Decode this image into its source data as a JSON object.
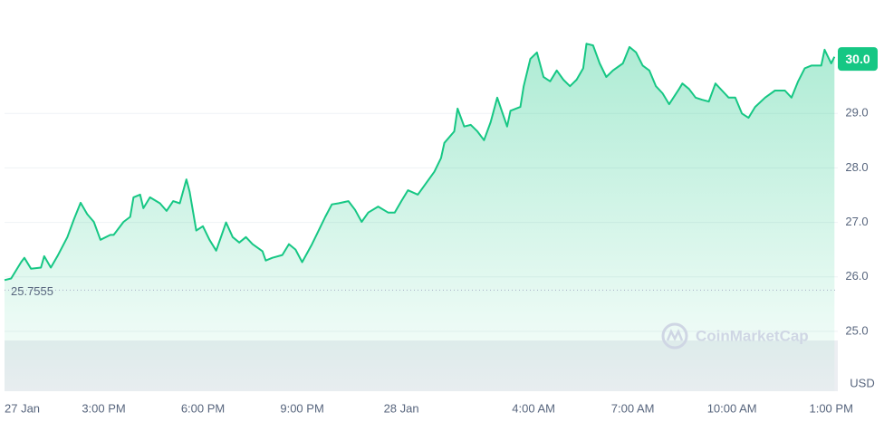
{
  "chart_data": {
    "type": "area",
    "x": [
      12.0,
      12.2,
      12.5,
      12.6,
      12.8,
      13.1,
      13.2,
      13.4,
      13.6,
      13.9,
      14.1,
      14.3,
      14.5,
      14.7,
      14.9,
      15.2,
      15.3,
      15.6,
      15.8,
      15.9,
      16.1,
      16.2,
      16.4,
      16.7,
      16.9,
      17.1,
      17.3,
      17.5,
      17.6,
      17.8,
      18.0,
      18.2,
      18.4,
      18.7,
      18.9,
      19.1,
      19.3,
      19.5,
      19.8,
      19.9,
      20.1,
      20.4,
      20.6,
      20.8,
      21.0,
      21.3,
      21.5,
      21.7,
      21.9,
      22.1,
      22.4,
      22.6,
      22.8,
      23.0,
      23.3,
      23.6,
      23.8,
      24.0,
      24.2,
      24.5,
      24.7,
      25.0,
      25.2,
      25.3,
      25.6,
      25.7,
      25.9,
      26.1,
      26.3,
      26.5,
      26.7,
      26.9,
      27.2,
      27.3,
      27.6,
      27.7,
      27.9,
      28.1,
      28.3,
      28.5,
      28.7,
      28.9,
      29.1,
      29.3,
      29.5,
      29.6,
      29.8,
      30.0,
      30.2,
      30.4,
      30.7,
      30.9,
      31.1,
      31.3,
      31.5,
      31.7,
      31.9,
      32.1,
      32.4,
      32.5,
      32.7,
      32.9,
      33.1,
      33.3,
      33.5,
      33.7,
      33.9,
      34.1,
      34.3,
      34.5,
      34.7,
      35.0,
      35.3,
      35.6,
      35.8,
      36.0,
      36.2,
      36.4,
      36.7,
      36.8,
      37.0,
      37.1
    ],
    "values": [
      25.94,
      25.97,
      26.27,
      26.35,
      26.15,
      26.17,
      26.38,
      26.17,
      26.38,
      26.73,
      27.06,
      27.36,
      27.15,
      27.01,
      26.68,
      26.77,
      26.77,
      27.01,
      27.1,
      27.46,
      27.51,
      27.26,
      27.46,
      27.35,
      27.21,
      27.39,
      27.35,
      27.79,
      27.56,
      26.85,
      26.93,
      26.68,
      26.48,
      27.0,
      26.73,
      26.63,
      26.73,
      26.6,
      26.47,
      26.3,
      26.35,
      26.4,
      26.6,
      26.5,
      26.27,
      26.6,
      26.85,
      27.1,
      27.33,
      27.35,
      27.39,
      27.23,
      27.01,
      27.18,
      27.29,
      27.18,
      27.18,
      27.39,
      27.59,
      27.51,
      27.68,
      27.93,
      28.18,
      28.46,
      28.67,
      29.09,
      28.76,
      28.79,
      28.67,
      28.51,
      28.84,
      29.29,
      28.76,
      29.05,
      29.12,
      29.5,
      30.0,
      30.12,
      29.67,
      29.59,
      29.79,
      29.62,
      29.5,
      29.62,
      29.83,
      30.28,
      30.25,
      29.92,
      29.67,
      29.79,
      29.92,
      30.22,
      30.12,
      29.88,
      29.79,
      29.5,
      29.37,
      29.17,
      29.45,
      29.55,
      29.45,
      29.29,
      29.25,
      29.22,
      29.55,
      29.42,
      29.29,
      29.29,
      29.0,
      28.92,
      29.12,
      29.29,
      29.42,
      29.42,
      29.29,
      29.59,
      29.83,
      29.88,
      29.88,
      30.17,
      29.92,
      30.04
    ],
    "color": "#16c784",
    "xlim": [
      12,
      37.2
    ],
    "xticks": [
      {
        "value": 12,
        "label": "27 Jan"
      },
      {
        "value": 15,
        "label": "3:00 PM"
      },
      {
        "value": 18,
        "label": "6:00 PM"
      },
      {
        "value": 21,
        "label": "9:00 PM"
      },
      {
        "value": 24,
        "label": "28 Jan"
      },
      {
        "value": 28,
        "label": "4:00 AM"
      },
      {
        "value": 31,
        "label": "7:00 AM"
      },
      {
        "value": 34,
        "label": "10:00 AM"
      },
      {
        "value": 37,
        "label": "1:00 PM"
      }
    ],
    "ylim": [
      23.9,
      31.0
    ],
    "yticks": [
      {
        "value": 25,
        "label": "25.0"
      },
      {
        "value": 26,
        "label": "26.0"
      },
      {
        "value": 27,
        "label": "27.0"
      },
      {
        "value": 28,
        "label": "28.0"
      },
      {
        "value": 29,
        "label": "29.0"
      }
    ],
    "price_tag": {
      "value": 30,
      "label": "30.0"
    },
    "reference_line": 25.7555,
    "y_unit": "USD",
    "watermark": "CoinMarketCap",
    "grid": true
  }
}
